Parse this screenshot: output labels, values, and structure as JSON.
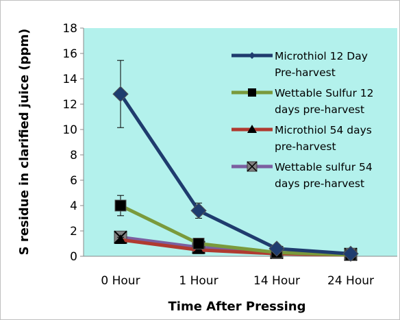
{
  "chart_data": {
    "type": "line",
    "title": "",
    "xlabel": "Time After Pressing",
    "ylabel": "S residue in clarified juice (ppm)",
    "categories": [
      "0 Hour",
      "1 Hour",
      "14 Hour",
      "24 Hour"
    ],
    "ylim": [
      0,
      18
    ],
    "yticks": [
      0,
      2,
      4,
      6,
      8,
      10,
      12,
      14,
      16,
      18
    ],
    "grid": false,
    "legend_position": "top-right",
    "plot_background": "#b3f1ec",
    "series": [
      {
        "name": "Microthiol 12 Day Pre-harvest",
        "legend_lines": [
          "Microthiol 12 Day",
          "Pre-harvest"
        ],
        "marker": "diamond",
        "color": "#1f3c6e",
        "values": [
          12.8,
          3.6,
          0.6,
          0.2
        ],
        "error": [
          2.65,
          0.6,
          0.1,
          0.05
        ]
      },
      {
        "name": "Wettable Sulfur 12 days pre-harvest",
        "legend_lines": [
          "Wettable Sulfur 12",
          "days pre-harvest"
        ],
        "marker": "square",
        "color": "#7a9a3c",
        "values": [
          4.0,
          1.0,
          0.3,
          0.1
        ],
        "error": [
          0.8,
          0.2,
          0.05,
          0.05
        ]
      },
      {
        "name": "Microthiol 54 days pre-harvest",
        "legend_lines": [
          "Microthiol 54 days",
          "pre-harvest"
        ],
        "marker": "triangle",
        "color": "#b03a30",
        "values": [
          1.3,
          0.5,
          0.2,
          0.1
        ],
        "error": [
          0.2,
          0.1,
          0.05,
          0.05
        ]
      },
      {
        "name": "Wettable sulfur 54 days pre-harvest",
        "legend_lines": [
          "Wettable sulfur 54",
          "days pre-harvest"
        ],
        "marker": "x-box",
        "color": "#7b5fa0",
        "values": [
          1.5,
          0.7,
          0.3,
          0.15
        ],
        "error": [
          0.3,
          0.15,
          0.05,
          0.05
        ]
      }
    ]
  }
}
